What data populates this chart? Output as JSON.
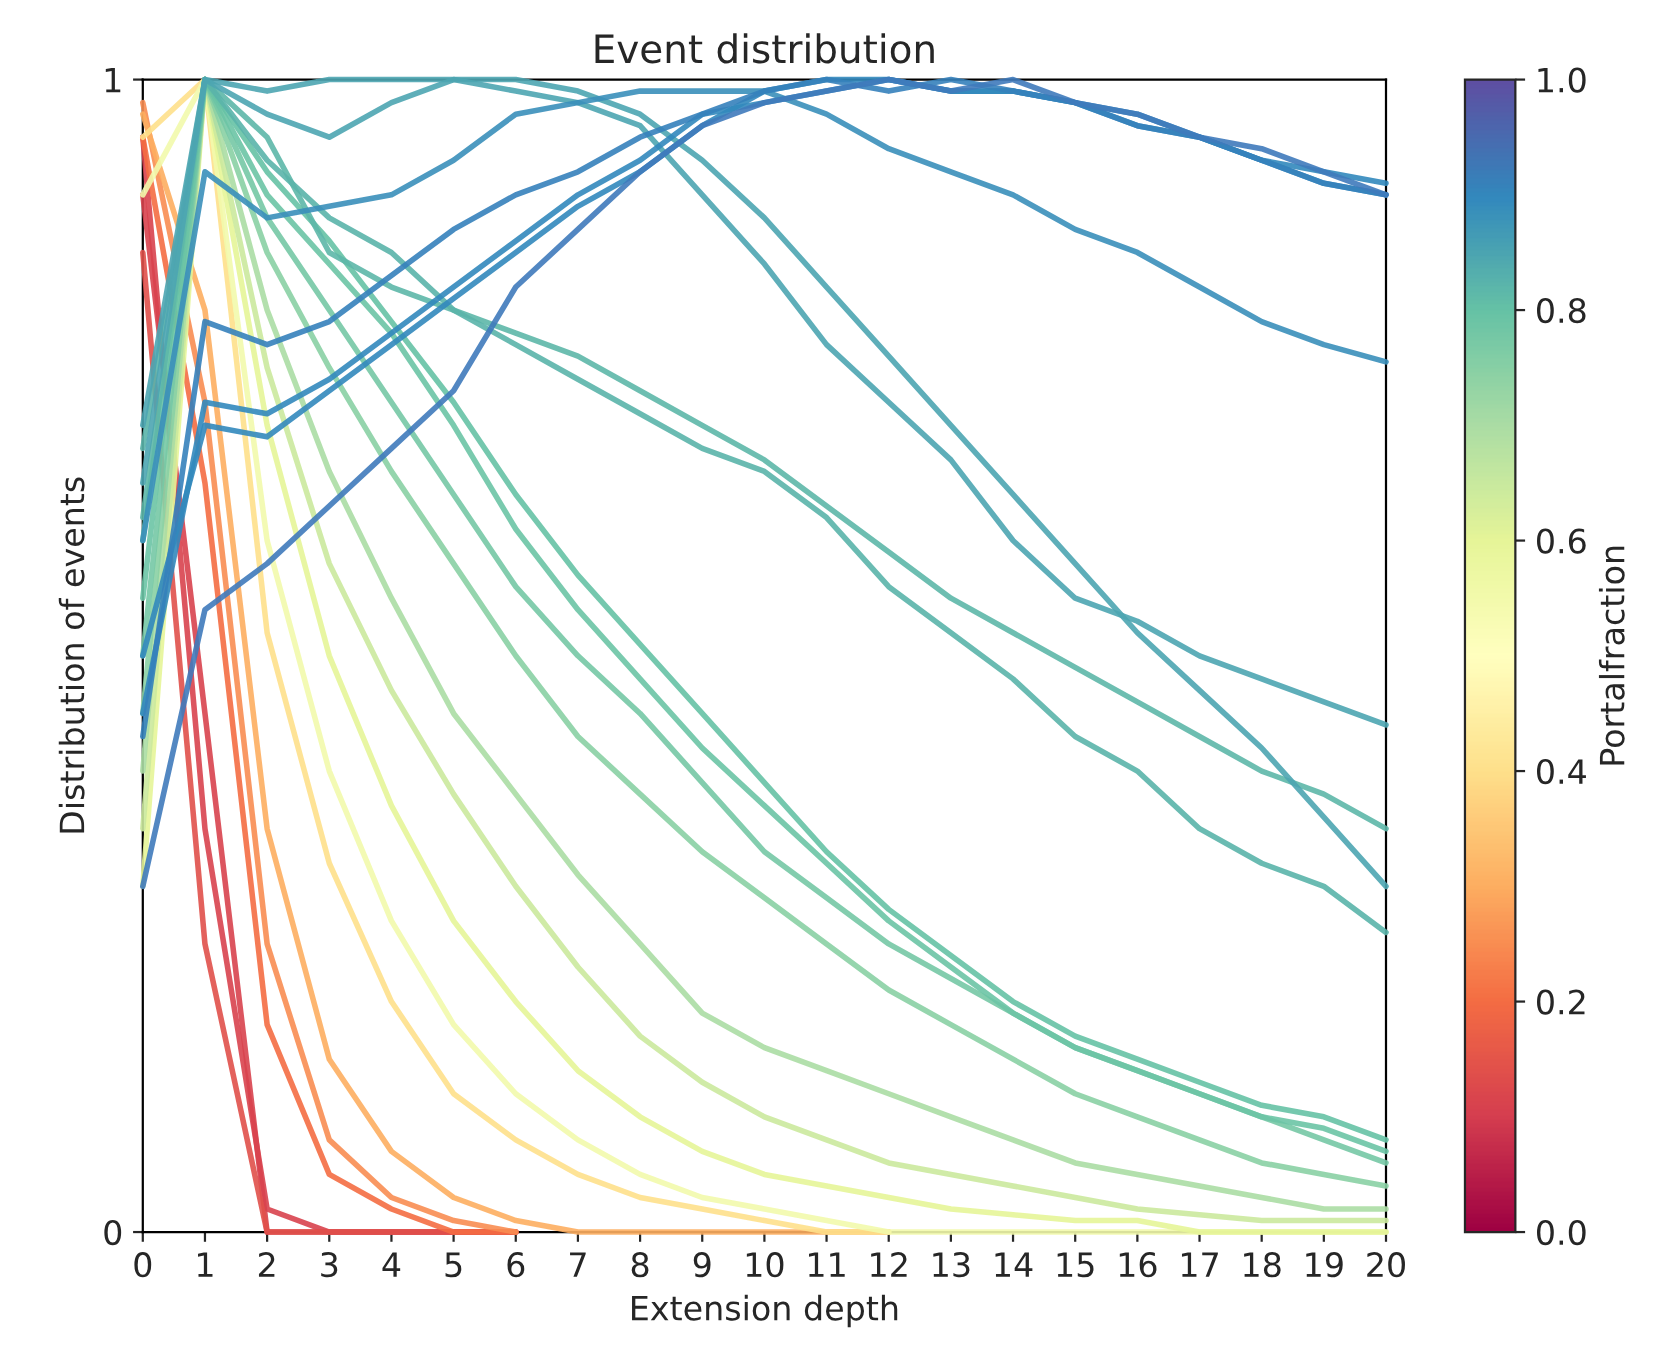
{
  "chart_data": {
    "type": "line",
    "title": "Event distribution",
    "xlabel": "Extension depth",
    "ylabel": "Distribution of events",
    "clabel": "Portalfraction",
    "x": [
      0,
      1,
      2,
      3,
      4,
      5,
      6,
      7,
      8,
      9,
      10,
      11,
      12,
      13,
      14,
      15,
      16,
      17,
      18,
      19,
      20
    ],
    "xlim": [
      0,
      20
    ],
    "xticks": [
      0,
      1,
      2,
      3,
      4,
      5,
      6,
      7,
      8,
      9,
      10,
      11,
      12,
      13,
      14,
      15,
      16,
      17,
      18,
      19,
      20
    ],
    "ylim": [
      0,
      1
    ],
    "yticks": [
      0,
      1
    ],
    "clim": [
      0.0,
      1.0
    ],
    "cticks": [
      {
        "value": 0,
        "label": "0.0"
      },
      0.2,
      0.4,
      0.6,
      0.8,
      {
        "value": 1,
        "label": "1.0"
      }
    ],
    "grid": false,
    "series": [
      {
        "color": "#d8434e",
        "values": [
          0.9,
          0.45,
          0.0,
          0.0,
          0.0,
          0.0,
          0.0,
          null,
          null,
          null,
          null,
          null,
          null,
          null,
          null,
          null,
          null,
          null,
          null,
          null,
          null
        ]
      },
      {
        "color": "#d8434e",
        "values": [
          0.95,
          0.35,
          0.02,
          0.0,
          0.0,
          0.0,
          0.0,
          null,
          null,
          null,
          null,
          null,
          null,
          null,
          null,
          null,
          null,
          null,
          null,
          null,
          null
        ]
      },
      {
        "color": "#e0504a",
        "values": [
          0.85,
          0.25,
          0.0,
          0.0,
          0.0,
          0.0,
          0.0,
          null,
          null,
          null,
          null,
          null,
          null,
          null,
          null,
          null,
          null,
          null,
          null,
          null,
          null
        ]
      },
      {
        "color": "#f46d43",
        "values": [
          0.95,
          0.65,
          0.18,
          0.05,
          0.02,
          0.0,
          0.0,
          null,
          null,
          null,
          null,
          null,
          null,
          null,
          null,
          null,
          null,
          null,
          null,
          null,
          null
        ]
      },
      {
        "color": "#f88d52",
        "values": [
          0.98,
          0.72,
          0.25,
          0.08,
          0.03,
          0.01,
          0.0,
          null,
          null,
          null,
          null,
          null,
          null,
          null,
          null,
          null,
          null,
          null,
          null,
          null,
          null
        ]
      },
      {
        "color": "#fdae61",
        "values": [
          0.97,
          0.8,
          0.35,
          0.15,
          0.07,
          0.03,
          0.01,
          0.0,
          0.0,
          0.0,
          0.0,
          0.0,
          0.0,
          null,
          null,
          null,
          null,
          null,
          null,
          null,
          null
        ]
      },
      {
        "color": "#fee08b",
        "values": [
          0.95,
          1.0,
          0.52,
          0.32,
          0.2,
          0.12,
          0.08,
          0.05,
          0.03,
          0.02,
          0.01,
          0.0,
          0.0,
          null,
          null,
          null,
          null,
          null,
          null,
          null,
          null
        ]
      },
      {
        "color": "#f2faac",
        "values": [
          0.9,
          1.0,
          0.6,
          0.4,
          0.27,
          0.18,
          0.12,
          0.08,
          0.05,
          0.03,
          0.02,
          0.01,
          0.0,
          0.0,
          0.0,
          0.0,
          0.0,
          0.0,
          0.0,
          0.0,
          0.0
        ]
      },
      {
        "color": "#e6f598",
        "values": [
          0.3,
          1.0,
          0.7,
          0.5,
          0.37,
          0.27,
          0.2,
          0.14,
          0.1,
          0.07,
          0.05,
          0.04,
          0.03,
          0.02,
          0.015,
          0.01,
          0.01,
          0.0,
          0.0,
          0.0,
          0.0
        ]
      },
      {
        "color": "#cbe99d",
        "values": [
          0.35,
          1.0,
          0.75,
          0.58,
          0.47,
          0.38,
          0.3,
          0.23,
          0.17,
          0.13,
          0.1,
          0.08,
          0.06,
          0.05,
          0.04,
          0.03,
          0.02,
          0.015,
          0.01,
          0.01,
          0.01
        ]
      },
      {
        "color": "#abdda4",
        "values": [
          0.4,
          1.0,
          0.8,
          0.66,
          0.55,
          0.45,
          0.38,
          0.31,
          0.25,
          0.19,
          0.16,
          0.14,
          0.12,
          0.1,
          0.08,
          0.06,
          0.05,
          0.04,
          0.03,
          0.02,
          0.02
        ]
      },
      {
        "color": "#89d0a4",
        "values": [
          0.45,
          1.0,
          0.85,
          0.75,
          0.66,
          0.58,
          0.5,
          0.43,
          0.38,
          0.33,
          0.29,
          0.25,
          0.21,
          0.18,
          0.15,
          0.12,
          0.1,
          0.08,
          0.06,
          0.05,
          0.04
        ]
      },
      {
        "color": "#76c8a5",
        "values": [
          0.5,
          1.0,
          0.88,
          0.8,
          0.72,
          0.64,
          0.56,
          0.5,
          0.45,
          0.39,
          0.33,
          0.29,
          0.25,
          0.22,
          0.19,
          0.16,
          0.14,
          0.12,
          0.1,
          0.08,
          0.06
        ]
      },
      {
        "color": "#6cc4a5",
        "values": [
          0.55,
          1.0,
          0.9,
          0.84,
          0.78,
          0.7,
          0.61,
          0.54,
          0.48,
          0.42,
          0.37,
          0.32,
          0.27,
          0.23,
          0.19,
          0.16,
          0.14,
          0.12,
          0.1,
          0.09,
          0.07
        ]
      },
      {
        "color": "#66c2a5",
        "values": [
          0.6,
          1.0,
          0.92,
          0.86,
          0.79,
          0.72,
          0.64,
          0.57,
          0.51,
          0.45,
          0.39,
          0.33,
          0.28,
          0.24,
          0.2,
          0.17,
          0.15,
          0.13,
          0.11,
          0.1,
          0.08
        ]
      },
      {
        "color": "#5db7a9",
        "values": [
          0.62,
          1.0,
          0.95,
          0.85,
          0.82,
          0.8,
          0.78,
          0.76,
          0.73,
          0.7,
          0.67,
          0.63,
          0.59,
          0.55,
          0.52,
          0.49,
          0.46,
          0.43,
          0.4,
          0.38,
          0.35
        ]
      },
      {
        "color": "#5ab4aa",
        "values": [
          0.68,
          1.0,
          0.93,
          0.88,
          0.85,
          0.8,
          0.77,
          0.74,
          0.71,
          0.68,
          0.66,
          0.62,
          0.56,
          0.52,
          0.48,
          0.43,
          0.4,
          0.35,
          0.32,
          0.3,
          0.26
        ]
      },
      {
        "color": "#4ca5b1",
        "values": [
          0.65,
          1.0,
          0.97,
          0.95,
          0.98,
          1.0,
          1.0,
          0.99,
          0.97,
          0.93,
          0.88,
          0.82,
          0.76,
          0.7,
          0.64,
          0.58,
          0.52,
          0.47,
          0.42,
          0.36,
          0.3
        ]
      },
      {
        "color": "#4ca5b1",
        "values": [
          0.7,
          1.0,
          0.99,
          1.0,
          1.0,
          1.0,
          0.99,
          0.98,
          0.96,
          0.9,
          0.84,
          0.77,
          0.72,
          0.67,
          0.6,
          0.55,
          0.53,
          0.5,
          0.48,
          0.46,
          0.44
        ]
      },
      {
        "color": "#3a8fba",
        "values": [
          0.6,
          0.92,
          0.88,
          0.89,
          0.9,
          0.93,
          0.97,
          0.98,
          0.99,
          0.99,
          0.99,
          0.97,
          0.94,
          0.92,
          0.9,
          0.87,
          0.85,
          0.82,
          0.79,
          0.77,
          0.755
        ]
      },
      {
        "color": "#3288bd",
        "values": [
          0.5,
          0.7,
          0.69,
          0.73,
          0.77,
          0.81,
          0.85,
          0.89,
          0.92,
          0.96,
          0.99,
          1.0,
          1.0,
          0.99,
          0.99,
          0.98,
          0.97,
          0.95,
          0.93,
          0.92,
          0.91
        ]
      },
      {
        "color": "#3288bd",
        "values": [
          0.45,
          0.72,
          0.71,
          0.74,
          0.78,
          0.82,
          0.86,
          0.9,
          0.93,
          0.97,
          0.98,
          0.99,
          1.0,
          0.99,
          0.99,
          0.98,
          0.96,
          0.95,
          0.93,
          0.91,
          0.9
        ]
      },
      {
        "color": "#3581bb",
        "values": [
          0.43,
          0.79,
          0.77,
          0.79,
          0.83,
          0.87,
          0.9,
          0.92,
          0.95,
          0.97,
          0.99,
          1.0,
          0.99,
          1.0,
          0.99,
          0.98,
          0.96,
          0.95,
          0.93,
          0.91,
          0.9
        ]
      },
      {
        "color": "#3f7abb",
        "values": [
          0.3,
          0.54,
          0.58,
          0.63,
          0.68,
          0.73,
          0.82,
          0.87,
          0.92,
          0.96,
          0.98,
          0.99,
          1.0,
          0.99,
          1.0,
          0.98,
          0.97,
          0.95,
          0.94,
          0.92,
          0.9
        ]
      }
    ]
  }
}
